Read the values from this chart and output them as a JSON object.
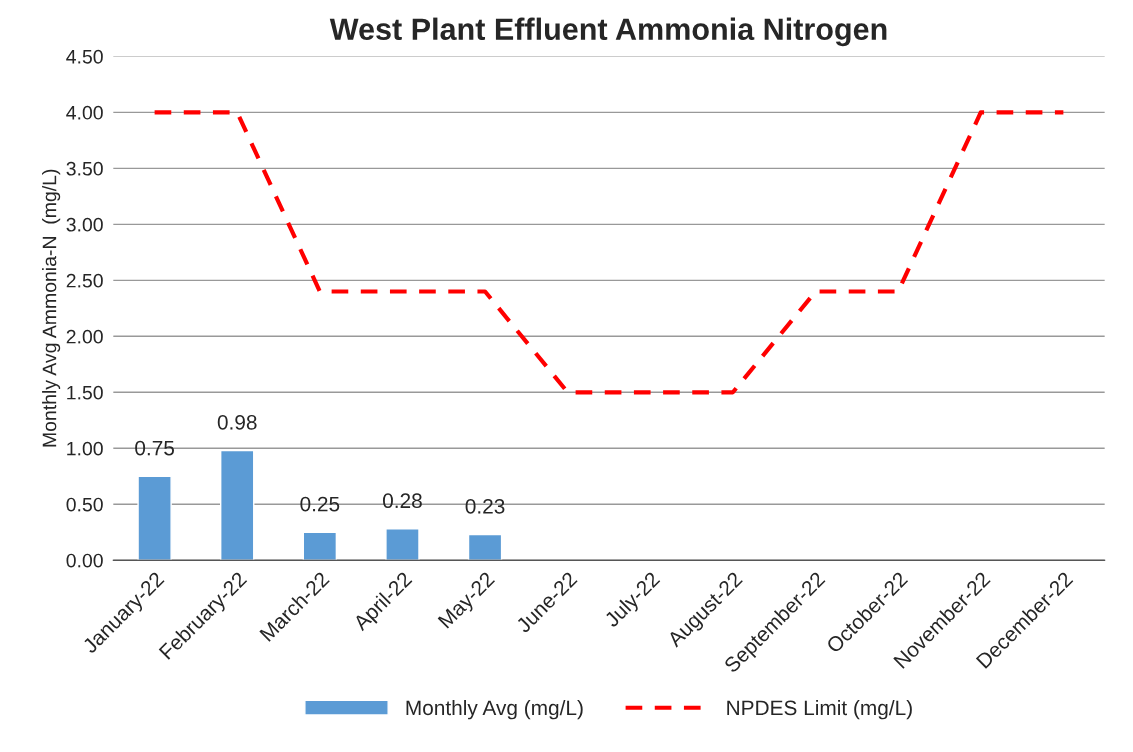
{
  "chart_data": {
    "type": "bar",
    "title": "West Plant Effluent Ammonia Nitrogen",
    "ylabel": "Monthly Avg Ammonia-N  (mg/L)",
    "categories": [
      "January-22",
      "February-22",
      "March-22",
      "April-22",
      "May-22",
      "June-22",
      "July-22",
      "August-22",
      "September-22",
      "October-22",
      "November-22",
      "December-22"
    ],
    "series": [
      {
        "name": "Monthly Avg (mg/L)",
        "color": "#5b9bd5",
        "values": [
          0.75,
          0.98,
          0.25,
          0.28,
          0.23,
          null,
          null,
          null,
          null,
          null,
          null,
          null
        ],
        "value_labels": [
          "0.75",
          "0.98",
          "0.25",
          "0.28",
          "0.23",
          null,
          null,
          null,
          null,
          null,
          null,
          null
        ]
      },
      {
        "name": "NPDES Limit (mg/L)",
        "type": "line",
        "color": "#ff0000",
        "line_style": "dashed",
        "values": [
          4.0,
          4.0,
          2.4,
          2.4,
          2.4,
          1.5,
          1.5,
          1.5,
          2.4,
          2.4,
          4.0,
          4.0
        ]
      }
    ],
    "ylim": [
      0,
      4.5
    ],
    "yticks": [
      {
        "value": 0,
        "label": "0.00"
      },
      {
        "value": 0.5,
        "label": "0.50"
      },
      {
        "value": 1,
        "label": "1.00"
      },
      {
        "value": 1.5,
        "label": "1.50"
      },
      {
        "value": 2,
        "label": "2.00"
      },
      {
        "value": 2.5,
        "label": "2.50"
      },
      {
        "value": 3,
        "label": "3.00"
      },
      {
        "value": 3.5,
        "label": "3.50"
      },
      {
        "value": 4,
        "label": "4.00"
      },
      {
        "value": 4.5,
        "label": "4.50"
      }
    ],
    "grid": "y",
    "legend": "bottom"
  }
}
